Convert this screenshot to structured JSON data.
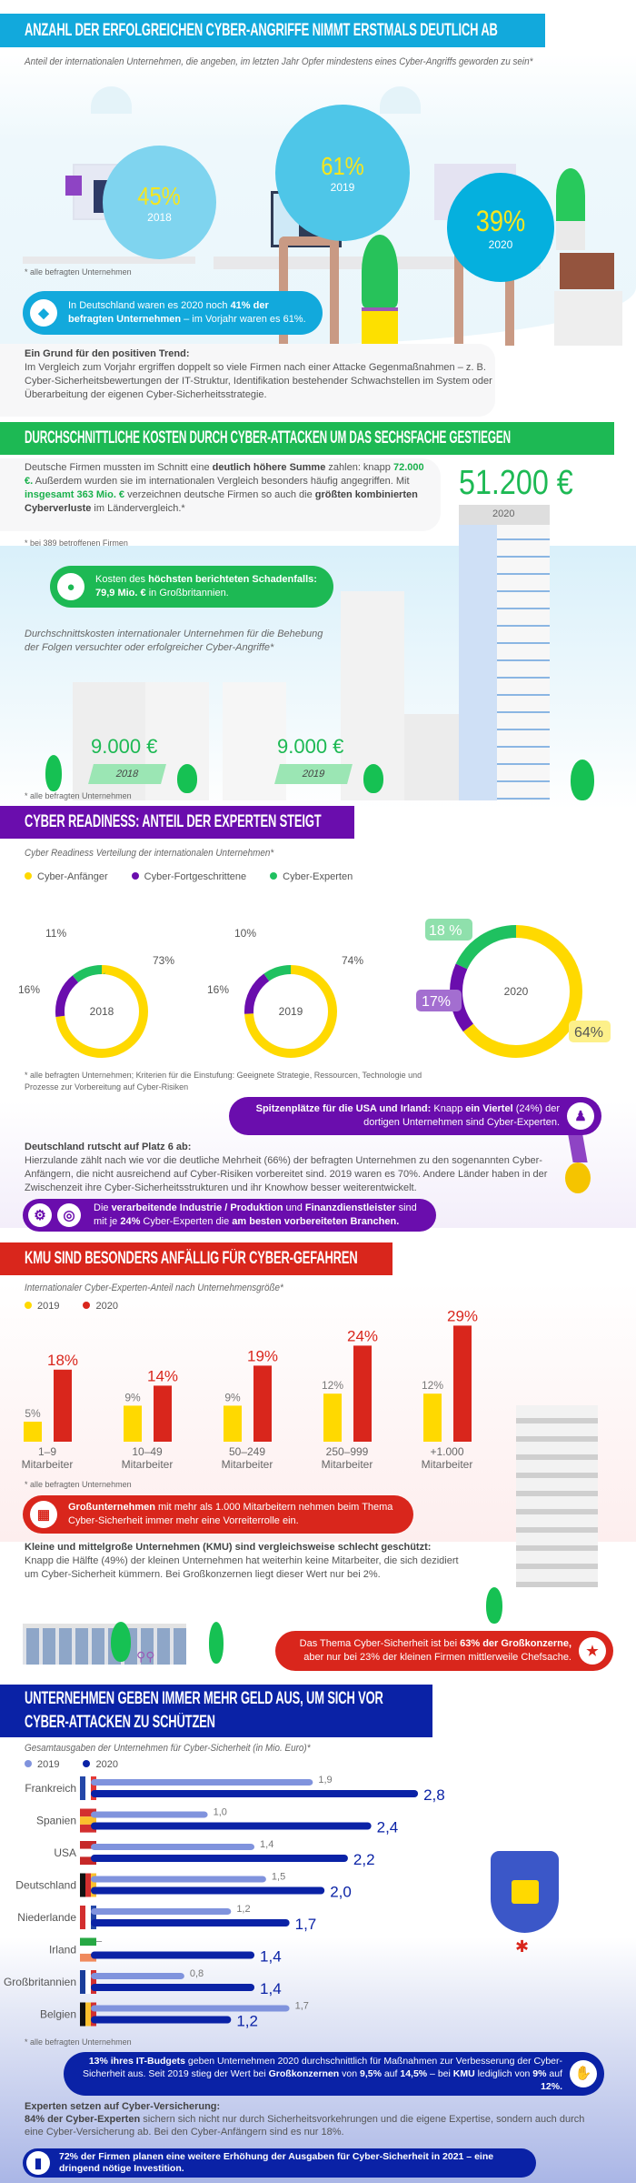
{
  "colors": {
    "cyan": "#12a9dc",
    "green": "#1db954",
    "purple": "#6a0dad",
    "red": "#d9261c",
    "blue": "#0a22a6",
    "yellow": "#ffd900"
  },
  "section1": {
    "title": "ANZAHL DER ERFOLGREICHEN CYBER-ANGRIFFE NIMMT ERSTMALS DEUTLICH AB",
    "subtitle": "Anteil der internationalen Unternehmen, die angeben, im letzten Jahr Opfer mindestens eines Cyber-Angriffs geworden zu sein*",
    "circles": [
      {
        "value": "45%",
        "year": "2018"
      },
      {
        "value": "61%",
        "year": "2019"
      },
      {
        "value": "39%",
        "year": "2020"
      }
    ],
    "footnote": "* alle befragten Unternehmen",
    "pill": [
      {
        "t": "In Deutschland waren es 2020 noch "
      },
      {
        "t": "41% der befragten Unternehmen",
        "s": "b"
      },
      {
        "t": " –  im Vorjahr waren es 61%."
      }
    ],
    "pill_icon": "germany-map-icon",
    "trend_heading": "Ein Grund für den positiven Trend:",
    "trend_text": "Im Vergleich zum Vorjahr ergriffen doppelt so viele Firmen nach einer Attacke Gegenmaßnahmen – z. B. Cyber-Sicherheitsbewertungen der IT-Struktur, Identifikation bestehender Schwachstellen im System oder Überarbeitung der eigenen Cyber-Sicherheitsstrategie."
  },
  "section2": {
    "title": "DURCHSCHNITTLICHE KOSTEN DURCH CYBER-ATTACKEN UM DAS SECHSFACHE GESTIEGEN",
    "intro": [
      {
        "t": "Deutsche Firmen mussten im Schnitt eine "
      },
      {
        "t": "deutlich höhere Summe",
        "s": "b"
      },
      {
        "t": " zahlen: knapp "
      },
      {
        "t": "72.000 €.",
        "s": "g"
      },
      {
        "t": " Außerdem wurden sie im internationalen Vergleich besonders häufig angegriffen. Mit "
      },
      {
        "t": "insgesamt 363 Mio. €",
        "s": "g"
      },
      {
        "t": " verzeichnen deutsche Firmen so auch die "
      },
      {
        "t": "größten kombinierten Cyberverluste",
        "s": "b"
      },
      {
        "t": " im Ländervergleich.*"
      }
    ],
    "footnote1": "* bei 389 betroffenen Firmen",
    "pill": [
      {
        "t": "Kosten des "
      },
      {
        "t": "höchsten berichteten Schadenfalls:",
        "s": "b"
      },
      {
        "t": " "
      },
      {
        "t": "79,9 Mio. €",
        "s": "b"
      },
      {
        "t": " in Großbritannien."
      }
    ],
    "pill_icon": "piggy-bank-icon",
    "chart_subtitle": "Durchschnittskosten internationaler Unternehmen für die Behebung der Folgen versuchter oder erfolgreicher Cyber-Angriffe*",
    "costs": [
      {
        "value": "9.000 €",
        "year": "2018"
      },
      {
        "value": "9.000 €",
        "year": "2019"
      },
      {
        "value": "51.200 €",
        "year": "2020"
      }
    ],
    "footnote2": "* alle befragten Unternehmen"
  },
  "section3": {
    "title": "CYBER READINESS: ANTEIL DER EXPERTEN STEIGT",
    "subtitle": "Cyber Readiness Verteilung der internationalen Unternehmen*",
    "footnote": "* alle befragten Unternehmen; Kriterien für die Einstufung: Geeignete Strategie, Ressourcen, Technologie und Prozesse zur Vorbereitung auf Cyber-Risiken",
    "pill1": [
      {
        "t": "Spitzenplätze für die USA und Irland:",
        "s": "w"
      },
      {
        "t": " Knapp "
      },
      {
        "t": "ein Viertel",
        "s": "w"
      },
      {
        "t": " (24%) der dortigen Unternehmen sind Cyber-Experten."
      }
    ],
    "pill1_icon": "expert-user-icon",
    "de_heading": "Deutschland rutscht auf Platz 6 ab:",
    "de_text": "Hierzulande zählt nach wie vor die deutliche Mehrheit (66%) der befragten Unternehmen zu den sogenannten Cyber-Anfängern, die nicht ausreichend auf Cyber-Risiken vorbereitet sind. 2019 waren es 70%. Andere Länder haben in der Zwischenzeit ihre Cyber-Sicherheitsstrukturen und ihr Knowhow besser weiterentwickelt.",
    "pill2": [
      {
        "t": "Die "
      },
      {
        "t": "verarbeitende Industrie / Produktion",
        "s": "w"
      },
      {
        "t": " und "
      },
      {
        "t": "Finanzdienstleister",
        "s": "w"
      },
      {
        "t": " sind mit je "
      },
      {
        "t": "24%",
        "s": "w"
      },
      {
        "t": " Cyber-Experten die "
      },
      {
        "t": "am besten vorbereiteten Branchen.",
        "s": "w"
      }
    ],
    "pill2_icons": [
      "gear-icon",
      "coins-icon"
    ]
  },
  "section4": {
    "title": "KMU SIND BESONDERS ANFÄLLIG FÜR CYBER-GEFAHREN",
    "subtitle": "Internationaler Cyber-Experten-Anteil nach Unternehmensgröße*",
    "footnote": "* alle befragten Unternehmen",
    "pill1": [
      {
        "t": "Großunternehmen",
        "s": "w"
      },
      {
        "t": " mit mehr als 1.000 Mitarbeitern nehmen beim Thema Cyber-Sicherheit immer mehr eine Vorreiterrolle ein."
      }
    ],
    "pill1_icon": "office-building-icon",
    "kmu_heading": "Kleine und mittelgroße Unternehmen (KMU) sind vergleichsweise schlecht geschützt:",
    "kmu_text": "Knapp die Hälfte (49%) der kleinen Unternehmen hat weiterhin keine Mitarbeiter, die sich dezidiert um Cyber-Sicherheit kümmern. Bei Großkonzernen liegt dieser Wert nur bei 2%.",
    "pill2": [
      {
        "t": "Das Thema Cyber-Sicherheit ist bei "
      },
      {
        "t": "63% der Großkonzerne,",
        "s": "w"
      },
      {
        "t": " aber nur bei 23% der kleinen Firmen mittlerweile Chefsache."
      }
    ],
    "pill2_icon": "boss-star-icon"
  },
  "section5": {
    "title_line1": "UNTERNEHMEN GEBEN IMMER MEHR GELD AUS, UM SICH VOR",
    "title_line2": "CYBER-ATTACKEN ZU SCHÜTZEN",
    "subtitle": "Gesamtausgaben der Unternehmen für Cyber-Sicherheit (in Mio. Euro)*",
    "footnote": "* alle befragten Unternehmen",
    "pill1": [
      {
        "t": "13% ihres IT-Budgets",
        "s": "w"
      },
      {
        "t": " geben Unternehmen 2020 durchschnittlich für Maßnahmen zur Verbesserung der Cyber-Sicherheit aus. Seit 2019 stieg der Wert bei "
      },
      {
        "t": "Großkonzernen",
        "s": "w"
      },
      {
        "t": " von "
      },
      {
        "t": "9,5%",
        "s": "w"
      },
      {
        "t": " auf "
      },
      {
        "t": "14,5%",
        "s": "w"
      },
      {
        "t": " – bei "
      },
      {
        "t": "KMU",
        "s": "w"
      },
      {
        "t": " lediglich von "
      },
      {
        "t": "9%",
        "s": "w"
      },
      {
        "t": " auf "
      },
      {
        "t": "12%.",
        "s": "w"
      }
    ],
    "pill1_icon": "hand-money-icon",
    "ins_heading": "Experten setzen auf Cyber-Versicherung:",
    "ins_text": [
      {
        "t": "84% der Cyber-Experten",
        "s": "b"
      },
      {
        "t": " sichern sich nicht nur durch Sicherheitsvorkehrungen und die eigene Expertise, sondern auch durch eine Cyber-Versicherung ab. Bei den Cyber-Anfängern sind es nur 18%."
      }
    ],
    "pill2": [
      {
        "t": "72% der Firmen planen eine weitere Erhöhung der Ausgaben für Cyber-Sicherheit in 2021 – eine dringend nötige Investition.",
        "s": "w"
      }
    ],
    "pill2_icon": "bar-chart-icon"
  },
  "chart_data": [
    {
      "type": "pie",
      "variant": "donut",
      "title": "Cyber Readiness Verteilung der internationalen Unternehmen*",
      "legend": [
        "Cyber-Anfänger",
        "Cyber-Fortgeschrittene",
        "Cyber-Experten"
      ],
      "colors": [
        "#ffd900",
        "#6a0dad",
        "#1fc160"
      ],
      "charts": [
        {
          "label": "2018",
          "values": [
            73,
            16,
            11
          ],
          "labels": [
            "73%",
            "16%",
            "11%"
          ]
        },
        {
          "label": "2019",
          "values": [
            74,
            16,
            10
          ],
          "labels": [
            "74%",
            "16%",
            "10%"
          ]
        },
        {
          "label": "2020",
          "values": [
            64,
            17,
            18
          ],
          "labels": [
            "64%",
            "17%",
            "18 %"
          ]
        }
      ]
    },
    {
      "type": "bar",
      "title": "Internationaler Cyber-Experten-Anteil nach Unternehmensgröße*",
      "categories": [
        [
          "1–9",
          "Mitarbeiter"
        ],
        [
          "10–49",
          "Mitarbeiter"
        ],
        [
          "50–249",
          "Mitarbeiter"
        ],
        [
          "250–999",
          "Mitarbeiter"
        ],
        [
          "+1.000",
          "Mitarbeiter"
        ]
      ],
      "series": [
        {
          "name": "2019",
          "color": "#ffd900",
          "values": [
            5,
            9,
            9,
            12,
            12
          ],
          "labels": [
            "5%",
            "9%",
            "9%",
            "12%",
            "12%"
          ]
        },
        {
          "name": "2020",
          "color": "#d9261c",
          "values": [
            18,
            14,
            19,
            24,
            29
          ],
          "labels": [
            "18%",
            "14%",
            "19%",
            "24%",
            "29%"
          ]
        }
      ],
      "ylim": [
        0,
        30
      ]
    },
    {
      "type": "bar",
      "orientation": "horizontal",
      "title": "Gesamtausgaben der Unternehmen für Cyber-Sicherheit (in Mio. Euro)*",
      "categories": [
        "Frankreich",
        "Spanien",
        "USA",
        "Deutschland",
        "Niederlande",
        "Irland",
        "Großbritannien",
        "Belgien"
      ],
      "flags": [
        "france-flag-icon",
        "spain-flag-icon",
        "usa-flag-icon",
        "germany-flag-icon",
        "netherlands-flag-icon",
        "ireland-flag-icon",
        "uk-flag-icon",
        "belgium-flag-icon"
      ],
      "series": [
        {
          "name": "2019",
          "color": "#8093dd",
          "values": [
            1.9,
            1.0,
            1.4,
            1.5,
            1.2,
            null,
            0.8,
            1.7
          ],
          "labels": [
            "1,9",
            "1,0",
            "1,4",
            "1,5",
            "1,2",
            "–",
            "0,8",
            "1,7"
          ]
        },
        {
          "name": "2020",
          "color": "#0a22a6",
          "values": [
            2.8,
            2.4,
            2.2,
            2.0,
            1.7,
            1.4,
            1.4,
            1.2
          ],
          "labels": [
            "2,8",
            "2,4",
            "2,2",
            "2,0",
            "1,7",
            "1,4",
            "1,4",
            "1,2"
          ]
        }
      ],
      "xlim": [
        0,
        2.8
      ]
    }
  ]
}
